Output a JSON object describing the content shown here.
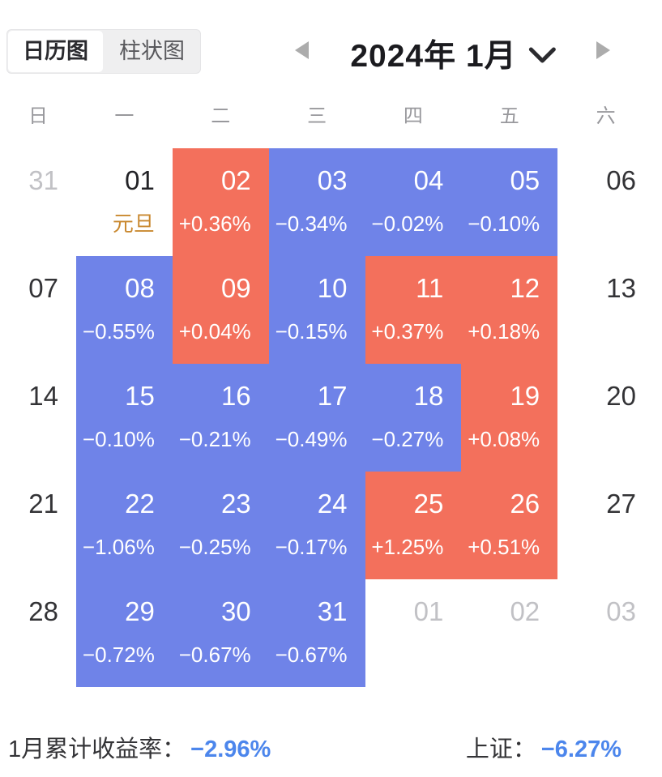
{
  "header": {
    "tabs": [
      {
        "label": "日历图",
        "active": true
      },
      {
        "label": "柱状图",
        "active": false
      }
    ],
    "title": "2024年 1月",
    "icons": {
      "prev": "left-arrow-icon",
      "next": "right-arrow-icon",
      "dropdown": "chevron-down-icon"
    }
  },
  "weekdays": [
    "日",
    "一",
    "二",
    "三",
    "四",
    "五",
    "六"
  ],
  "calendar": {
    "cells": [
      {
        "date": "31",
        "type": "muted"
      },
      {
        "date": "01",
        "type": "holiday",
        "label": "元旦"
      },
      {
        "date": "02",
        "type": "up",
        "value": "+0.36%"
      },
      {
        "date": "03",
        "type": "down",
        "value": "−0.34%"
      },
      {
        "date": "04",
        "type": "down",
        "value": "−0.02%"
      },
      {
        "date": "05",
        "type": "down",
        "value": "−0.10%"
      },
      {
        "date": "06",
        "type": "plain"
      },
      {
        "date": "07",
        "type": "plain"
      },
      {
        "date": "08",
        "type": "down",
        "value": "−0.55%"
      },
      {
        "date": "09",
        "type": "up",
        "value": "+0.04%"
      },
      {
        "date": "10",
        "type": "down",
        "value": "−0.15%"
      },
      {
        "date": "11",
        "type": "up",
        "value": "+0.37%"
      },
      {
        "date": "12",
        "type": "up",
        "value": "+0.18%"
      },
      {
        "date": "13",
        "type": "plain"
      },
      {
        "date": "14",
        "type": "plain"
      },
      {
        "date": "15",
        "type": "down",
        "value": "−0.10%"
      },
      {
        "date": "16",
        "type": "down",
        "value": "−0.21%"
      },
      {
        "date": "17",
        "type": "down",
        "value": "−0.49%"
      },
      {
        "date": "18",
        "type": "down",
        "value": "−0.27%"
      },
      {
        "date": "19",
        "type": "up",
        "value": "+0.08%"
      },
      {
        "date": "20",
        "type": "plain"
      },
      {
        "date": "21",
        "type": "plain"
      },
      {
        "date": "22",
        "type": "down",
        "value": "−1.06%"
      },
      {
        "date": "23",
        "type": "down",
        "value": "−0.25%"
      },
      {
        "date": "24",
        "type": "down",
        "value": "−0.17%"
      },
      {
        "date": "25",
        "type": "up",
        "value": "+1.25%"
      },
      {
        "date": "26",
        "type": "up",
        "value": "+0.51%"
      },
      {
        "date": "27",
        "type": "plain"
      },
      {
        "date": "28",
        "type": "plain"
      },
      {
        "date": "29",
        "type": "down",
        "value": "−0.72%"
      },
      {
        "date": "30",
        "type": "down",
        "value": "−0.67%"
      },
      {
        "date": "31",
        "type": "down",
        "value": "−0.67%"
      },
      {
        "date": "01",
        "type": "muted"
      },
      {
        "date": "02",
        "type": "muted"
      },
      {
        "date": "03",
        "type": "muted"
      }
    ]
  },
  "footer": {
    "month_return_label": "1月累计收益率：",
    "month_return_value": "−2.96%",
    "index_label": "上证：",
    "index_value": "−6.27%"
  },
  "colors": {
    "up": "#f3705c",
    "down": "#6f83e8",
    "value_blue": "#4c86ec",
    "holiday_orange": "#c9882f"
  }
}
